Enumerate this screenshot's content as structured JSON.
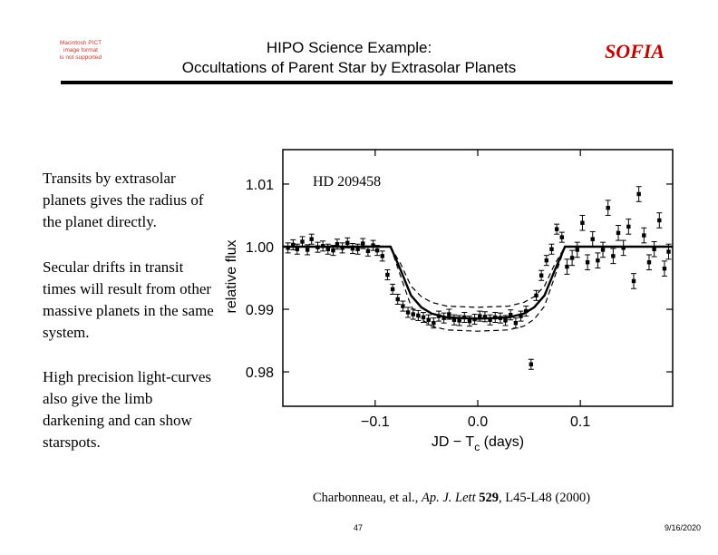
{
  "header": {
    "placeholder_lines": [
      "Macintosh PICT",
      "image format",
      "is not supported"
    ],
    "title_line1": "HIPO Science Example:",
    "title_line2": "Occultations of Parent Star by Extrasolar Planets",
    "brand": "SOFIA",
    "brand_color": "#c00000"
  },
  "paragraphs": [
    "Transits by extrasolar planets gives the radius of the planet directly.",
    "Secular drifts in transit times will result from other massive planets in the same system.",
    "High precision light-curves also give the limb darkening and can show starspots."
  ],
  "chart_data": {
    "type": "scatter",
    "annotation": "HD 209458",
    "xlabel": "JD − T",
    "xlabel_subscript": "c",
    "xlabel_suffix": " (days)",
    "ylabel": "relative flux",
    "xlim": [
      -0.19,
      0.19
    ],
    "ylim": [
      0.9745,
      1.0155
    ],
    "xticks": [
      -0.1,
      0.0,
      0.1
    ],
    "xtick_labels": [
      "−0.1",
      "0.0",
      "0.1"
    ],
    "yticks": [
      0.98,
      0.99,
      1.0,
      1.01
    ],
    "ytick_labels": [
      "0.98",
      "0.99",
      "1.00",
      "1.01"
    ],
    "grid": false,
    "series": [
      {
        "style": "points_with_error_bars",
        "x": [
          -0.185,
          -0.18,
          -0.176,
          -0.171,
          -0.166,
          -0.162,
          -0.156,
          -0.151,
          -0.146,
          -0.141,
          -0.137,
          -0.132,
          -0.127,
          -0.122,
          -0.117,
          -0.112,
          -0.107,
          -0.102,
          -0.098,
          -0.093,
          -0.088,
          -0.083,
          -0.078,
          -0.073,
          -0.068,
          -0.063,
          -0.058,
          -0.053,
          -0.048,
          -0.043,
          -0.038,
          -0.033,
          -0.028,
          -0.023,
          -0.018,
          -0.013,
          -0.008,
          -0.003,
          0.002,
          0.007,
          0.012,
          0.017,
          0.022,
          0.027,
          0.032,
          0.037,
          0.042,
          0.047,
          0.052,
          0.057,
          0.062,
          0.067,
          0.072,
          0.077,
          0.082,
          0.087,
          0.092,
          0.097,
          0.102,
          0.107,
          0.112,
          0.117,
          0.122,
          0.127,
          0.132,
          0.137,
          0.142,
          0.147,
          0.152,
          0.157,
          0.162,
          0.167,
          0.172,
          0.177,
          0.182,
          0.186
        ],
        "y": [
          0.9998,
          1.0003,
          0.9996,
          1.0008,
          0.9995,
          1.0012,
          0.9999,
          1.0001,
          0.9996,
          0.9994,
          1.0004,
          0.9998,
          1.0006,
          0.9997,
          0.9996,
          1.0005,
          0.9993,
          1.0002,
          0.9994,
          0.9985,
          0.9955,
          0.9932,
          0.9916,
          0.9905,
          0.9895,
          0.9892,
          0.989,
          0.9887,
          0.9883,
          0.9878,
          0.9889,
          0.9886,
          0.9892,
          0.9883,
          0.9882,
          0.9887,
          0.9881,
          0.9884,
          0.9889,
          0.9888,
          0.9883,
          0.9887,
          0.9886,
          0.9882,
          0.9891,
          0.9878,
          0.9889,
          0.9897,
          0.9812,
          0.9922,
          0.9954,
          0.9978,
          0.9996,
          1.0028,
          1.0015,
          0.9968,
          0.9982,
          0.9995,
          1.0038,
          0.9975,
          1.0012,
          0.9978,
          0.9995,
          1.0062,
          0.9985,
          1.0022,
          0.9998,
          1.0032,
          0.9945,
          1.0084,
          1.0018,
          0.9975,
          0.9996,
          1.0042,
          0.9965,
          0.9992
        ],
        "error": [
          0.0008,
          0.0008,
          0.0008,
          0.0008,
          0.0008,
          0.0008,
          0.0008,
          0.0008,
          0.0008,
          0.0008,
          0.0008,
          0.0008,
          0.0008,
          0.0008,
          0.0008,
          0.0008,
          0.0008,
          0.0008,
          0.0008,
          0.0008,
          0.0008,
          0.0008,
          0.0008,
          0.0008,
          0.0008,
          0.0008,
          0.0008,
          0.0008,
          0.0008,
          0.0008,
          0.0008,
          0.0008,
          0.0008,
          0.0008,
          0.0008,
          0.0008,
          0.0008,
          0.0008,
          0.0008,
          0.0008,
          0.0008,
          0.0008,
          0.0008,
          0.0008,
          0.0008,
          0.0008,
          0.0008,
          0.0008,
          0.0008,
          0.0008,
          0.0008,
          0.0008,
          0.0008,
          0.0008,
          0.0008,
          0.0012,
          0.0012,
          0.0012,
          0.0012,
          0.0012,
          0.0012,
          0.0012,
          0.0012,
          0.0012,
          0.0012,
          0.0012,
          0.0012,
          0.0012,
          0.0012,
          0.0012,
          0.0012,
          0.0012,
          0.0012,
          0.0012,
          0.0012,
          0.0012
        ]
      },
      {
        "style": "solid_line",
        "x": [
          -0.19,
          -0.085,
          -0.075,
          -0.065,
          -0.055,
          -0.045,
          -0.03,
          0,
          0.03,
          0.045,
          0.055,
          0.065,
          0.075,
          0.085,
          0.19
        ],
        "y": [
          1.0,
          1.0,
          0.9962,
          0.9922,
          0.9903,
          0.9893,
          0.9887,
          0.9885,
          0.9887,
          0.9893,
          0.9903,
          0.9922,
          0.9962,
          1.0,
          1.0
        ]
      },
      {
        "style": "dashed_line",
        "x": [
          -0.085,
          -0.075,
          -0.065,
          -0.055,
          -0.045,
          -0.03,
          0,
          0.03,
          0.045,
          0.055,
          0.065,
          0.075,
          0.085
        ],
        "y": [
          1.0,
          0.9972,
          0.9937,
          0.992,
          0.9911,
          0.9905,
          0.9903,
          0.9905,
          0.9911,
          0.992,
          0.9937,
          0.9972,
          1.0
        ]
      },
      {
        "style": "dashed_line",
        "x": [
          -0.085,
          -0.075,
          -0.065,
          -0.055,
          -0.045,
          -0.03,
          0,
          0.03,
          0.045,
          0.055,
          0.065,
          0.075,
          0.085
        ],
        "y": [
          1.0,
          0.9952,
          0.9905,
          0.9884,
          0.9873,
          0.9867,
          0.9865,
          0.9867,
          0.9873,
          0.9884,
          0.9905,
          0.9952,
          1.0
        ]
      }
    ]
  },
  "citation": {
    "authors": "Charbonneau, et al., ",
    "journal": "Ap. J. Lett",
    "volume": "529",
    "pages": ", L45-L48 (2000)"
  },
  "footer": {
    "page_number": "47",
    "date": "9/16/2020"
  }
}
